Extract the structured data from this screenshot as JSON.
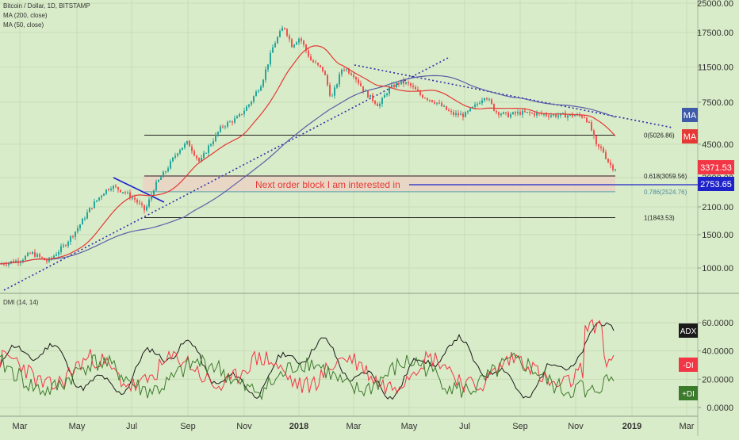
{
  "header": {
    "title": "Bitcoin / Dollar, 1D, BITSTAMP",
    "ind1": "MA (200, close)",
    "ind2": "MA (50, close)",
    "dmi_title": "DMI (14, 14)"
  },
  "chart_data": [
    {
      "type": "candlestick",
      "title": "Bitcoin / Dollar, 1D, BITSTAMP",
      "x_axis_labels": [
        "Mar",
        "May",
        "Jul",
        "Sep",
        "Nov",
        "2018",
        "Mar",
        "May",
        "Jul",
        "Sep",
        "Nov",
        "2019",
        "Mar"
      ],
      "y_axis_labels": [
        "25000.00",
        "17500.00",
        "11500.00",
        "7500.00",
        "4500.00",
        "3000.00",
        "2100.00",
        "1500.00",
        "1000.00"
      ],
      "y_scale": "log",
      "series": [
        {
          "name": "MA (200, close)",
          "color": "#5a5fa8"
        },
        {
          "name": "MA (50, close)",
          "color": "#e53935"
        }
      ],
      "fib_levels": [
        {
          "label": "0(5026.86)",
          "value": 5026.86
        },
        {
          "label": "0.618(3059.56)",
          "value": 3059.56
        },
        {
          "label": "0.786(2524.76)",
          "value": 2524.76
        },
        {
          "label": "1(1843.53)",
          "value": 1843.53
        }
      ],
      "annotation": "Next order block I am interested in",
      "price_tags": [
        {
          "label": "MA",
          "color": "#3f5aa8"
        },
        {
          "label": "MA",
          "color": "#e53935"
        },
        {
          "label": "3371.53",
          "color": "#f23645"
        },
        {
          "label": "2753.65",
          "color": "#1e22c9"
        }
      ]
    },
    {
      "type": "line",
      "title": "DMI (14, 14)",
      "y_axis_labels": [
        "60.0000",
        "40.0000",
        "20.0000",
        "0.0000"
      ],
      "ylim": [
        0,
        60
      ],
      "series": [
        {
          "name": "ADX",
          "color": "#1a1a1a"
        },
        {
          "name": "-DI",
          "color": "#f23645"
        },
        {
          "name": "+DI",
          "color": "#3c7a2c"
        }
      ]
    }
  ]
}
